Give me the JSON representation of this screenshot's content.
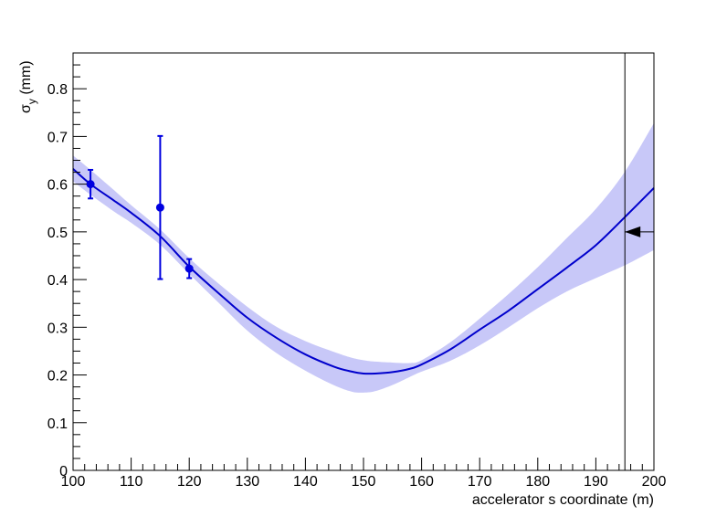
{
  "chart_data": {
    "type": "line",
    "title": "",
    "xlabel": "accelerator s coordinate (m)",
    "ylabel": {
      "main": "σ",
      "sub": "y",
      "unit": " (mm)"
    },
    "xlim": [
      100,
      200
    ],
    "ylim": [
      0,
      0.875
    ],
    "x_ticks": [
      100,
      110,
      120,
      130,
      140,
      150,
      160,
      170,
      180,
      190,
      200
    ],
    "y_ticks": [
      0,
      0.1,
      0.2,
      0.3,
      0.4,
      0.5,
      0.6,
      0.7,
      0.8
    ],
    "x_tick_labels": [
      "100",
      "110",
      "120",
      "130",
      "140",
      "150",
      "160",
      "170",
      "180",
      "190",
      "200"
    ],
    "y_tick_labels": [
      "0",
      "0.1",
      "0.2",
      "0.3",
      "0.4",
      "0.5",
      "0.6",
      "0.7",
      "0.8"
    ],
    "grid": false,
    "colors": {
      "fit": "#0000cc",
      "band": "#c8c8f8",
      "points": "#0000e0",
      "marker": "#000000"
    },
    "measurements": [
      {
        "x": 103,
        "y": 0.6,
        "yerr_low": 0.03,
        "yerr_high": 0.03
      },
      {
        "x": 115,
        "y": 0.551,
        "yerr_low": 0.15,
        "yerr_high": 0.15
      },
      {
        "x": 120,
        "y": 0.423,
        "yerr_low": 0.02,
        "yerr_high": 0.02
      }
    ],
    "fit": {
      "x": [
        100,
        103,
        107,
        110,
        115,
        120,
        125,
        130,
        135,
        140,
        145,
        148,
        150,
        152,
        155,
        158,
        160,
        165,
        170,
        175,
        180,
        185,
        190,
        195,
        200
      ],
      "y": [
        0.632,
        0.6,
        0.566,
        0.54,
        0.491,
        0.427,
        0.372,
        0.32,
        0.278,
        0.243,
        0.217,
        0.207,
        0.203,
        0.203,
        0.206,
        0.213,
        0.222,
        0.254,
        0.295,
        0.335,
        0.38,
        0.425,
        0.472,
        0.531,
        0.592
      ]
    },
    "band": {
      "x": [
        100,
        103,
        107,
        110,
        115,
        120,
        125,
        130,
        135,
        140,
        145,
        148,
        150,
        152,
        155,
        158,
        160,
        165,
        170,
        175,
        180,
        185,
        190,
        195,
        200
      ],
      "upper": [
        0.66,
        0.63,
        0.588,
        0.556,
        0.505,
        0.445,
        0.392,
        0.343,
        0.301,
        0.271,
        0.248,
        0.236,
        0.231,
        0.228,
        0.226,
        0.225,
        0.231,
        0.269,
        0.318,
        0.37,
        0.426,
        0.487,
        0.548,
        0.626,
        0.728
      ],
      "lower": [
        0.606,
        0.578,
        0.543,
        0.519,
        0.473,
        0.412,
        0.352,
        0.293,
        0.246,
        0.209,
        0.178,
        0.165,
        0.163,
        0.166,
        0.179,
        0.196,
        0.207,
        0.23,
        0.262,
        0.3,
        0.34,
        0.375,
        0.403,
        0.43,
        0.462
      ]
    },
    "marker_line_x": 195,
    "arrow_y": 0.5
  }
}
